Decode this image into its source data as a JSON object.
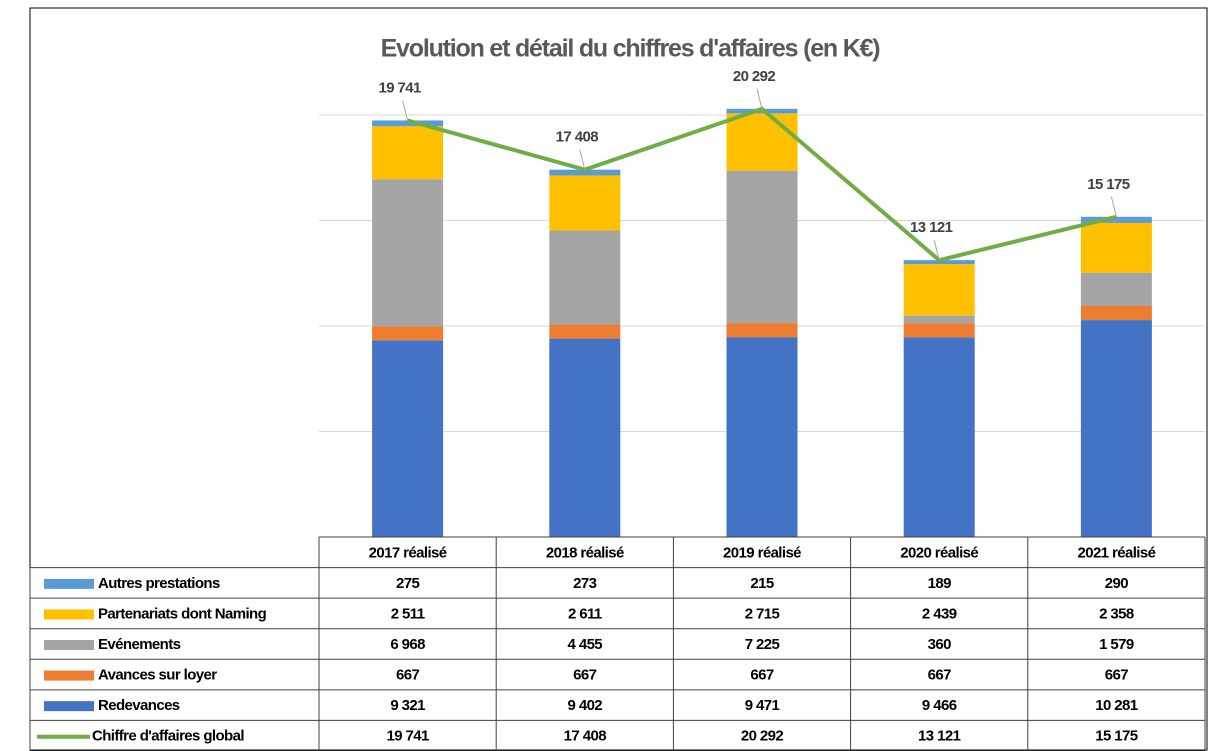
{
  "chart_data": {
    "type": "bar",
    "title": "Evolution et détail du chiffres d'affaires (en K€)",
    "categories": [
      "2017 réalisé",
      "2018 réalisé",
      "2019 réalisé",
      "2020 réalisé",
      "2021 réalisé"
    ],
    "ylim": [
      0,
      20000
    ],
    "yticks": [
      0,
      5000,
      10000,
      15000,
      20000
    ],
    "grid": true,
    "series": [
      {
        "name": "Autres prestations",
        "color": "#5b9bd5",
        "type": "bar",
        "values": [
          275,
          273,
          215,
          189,
          290
        ]
      },
      {
        "name": "Partenariats dont Naming",
        "color": "#ffc000",
        "type": "bar",
        "values": [
          2511,
          2611,
          2715,
          2439,
          2358
        ],
        "value_labels": [
          "2 511",
          "2 611",
          "2 715",
          "2 439",
          "2 358"
        ]
      },
      {
        "name": "Evénements",
        "color": "#a5a5a5",
        "type": "bar",
        "values": [
          6968,
          4455,
          7225,
          360,
          1579
        ],
        "value_labels": [
          "6 968",
          "4 455",
          "7 225",
          "360",
          "1 579"
        ]
      },
      {
        "name": "Avances sur loyer",
        "color": "#ed7d31",
        "type": "bar",
        "values": [
          667,
          667,
          667,
          667,
          667
        ]
      },
      {
        "name": "Redevances",
        "color": "#4472c4",
        "type": "bar",
        "values": [
          9321,
          9402,
          9471,
          9466,
          10281
        ],
        "value_labels": [
          "9 321",
          "9 402",
          "9 471",
          "9 466",
          "10 281"
        ]
      },
      {
        "name": "Chiffre d'affaires global",
        "color": "#70ad47",
        "type": "line",
        "values": [
          19741,
          17408,
          20292,
          13121,
          15175
        ],
        "value_labels": [
          "19 741",
          "17 408",
          "20 292",
          "13 121",
          "15 175"
        ]
      }
    ]
  }
}
